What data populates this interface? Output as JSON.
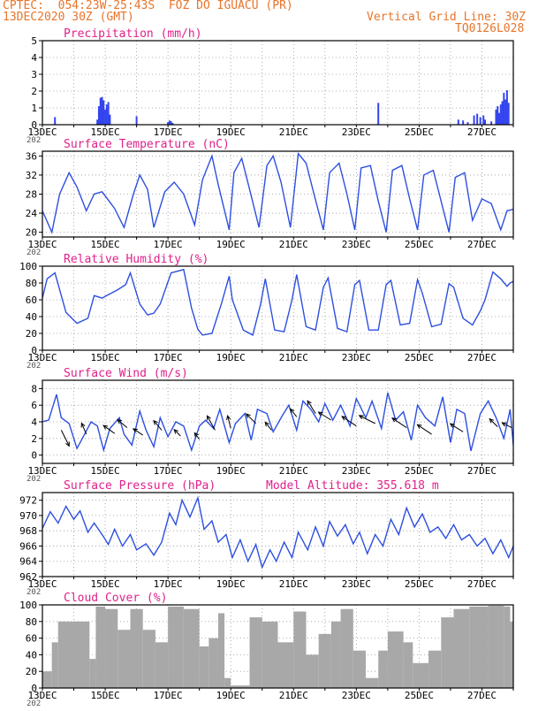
{
  "header": {
    "line1": "CPTEC:  054:23W-25:43S  FOZ DO IGUACU (PR)",
    "line2": "13DEC2020 30Z (GMT)",
    "grid_note": "Vertical Grid Line: 30Z",
    "code": "TQ0126L028"
  },
  "colors": {
    "header": "#e8742a",
    "panel_title": "#e0208a",
    "line": "#2d4fe0",
    "bars": "#3344ee",
    "cloud": "#a8a8a8",
    "axis": "#000000",
    "grid": "#9a9a9a"
  },
  "x_axis": {
    "start": "13DEC",
    "end": "28DEC",
    "tick_labels": [
      "13DEC",
      "15DEC",
      "17DEC",
      "19DEC",
      "21DEC",
      "23DEC",
      "25DEC",
      "27DEC"
    ],
    "year_fragment": "202"
  },
  "chart_data": [
    {
      "id": "precip",
      "type": "bar",
      "title": "Precipitation (mm/h)",
      "ylim": [
        0,
        5
      ],
      "yticks": [
        0,
        1,
        2,
        3,
        4,
        5
      ],
      "grid": true,
      "bars": [
        {
          "day": 13.4,
          "v": 0.45
        },
        {
          "day": 14.75,
          "v": 0.3
        },
        {
          "day": 14.8,
          "v": 1.1
        },
        {
          "day": 14.85,
          "v": 1.6
        },
        {
          "day": 14.9,
          "v": 1.65
        },
        {
          "day": 14.95,
          "v": 1.45
        },
        {
          "day": 15.0,
          "v": 0.9
        },
        {
          "day": 15.05,
          "v": 1.2
        },
        {
          "day": 15.1,
          "v": 1.35
        },
        {
          "day": 15.15,
          "v": 0.6
        },
        {
          "day": 16.0,
          "v": 0.5
        },
        {
          "day": 17.0,
          "v": 0.15
        },
        {
          "day": 17.05,
          "v": 0.25
        },
        {
          "day": 17.1,
          "v": 0.2
        },
        {
          "day": 17.15,
          "v": 0.1
        },
        {
          "day": 23.7,
          "v": 1.3
        },
        {
          "day": 26.25,
          "v": 0.3
        },
        {
          "day": 26.4,
          "v": 0.25
        },
        {
          "day": 26.55,
          "v": 0.15
        },
        {
          "day": 26.75,
          "v": 0.55
        },
        {
          "day": 26.85,
          "v": 0.65
        },
        {
          "day": 26.95,
          "v": 0.45
        },
        {
          "day": 27.05,
          "v": 0.55
        },
        {
          "day": 27.1,
          "v": 0.3
        },
        {
          "day": 27.3,
          "v": 0.2
        },
        {
          "day": 27.45,
          "v": 0.9
        },
        {
          "day": 27.5,
          "v": 1.1
        },
        {
          "day": 27.55,
          "v": 0.7
        },
        {
          "day": 27.6,
          "v": 1.2
        },
        {
          "day": 27.65,
          "v": 1.4
        },
        {
          "day": 27.7,
          "v": 1.9
        },
        {
          "day": 27.75,
          "v": 1.5
        },
        {
          "day": 27.8,
          "v": 2.05
        },
        {
          "day": 27.85,
          "v": 1.3
        }
      ]
    },
    {
      "id": "temp",
      "type": "line",
      "title": "Surface Temperature (nC)",
      "ylim": [
        19,
        37
      ],
      "yticks": [
        20,
        24,
        28,
        32,
        36
      ],
      "grid": true,
      "x": [
        13.0,
        13.3,
        13.55,
        13.85,
        14.1,
        14.4,
        14.65,
        14.9,
        15.3,
        15.6,
        15.9,
        16.1,
        16.35,
        16.55,
        16.9,
        17.2,
        17.5,
        17.85,
        18.1,
        18.4,
        18.6,
        18.95,
        19.1,
        19.35,
        19.6,
        19.9,
        20.15,
        20.35,
        20.6,
        20.9,
        21.15,
        21.4,
        21.65,
        21.95,
        22.15,
        22.45,
        22.7,
        22.95,
        23.15,
        23.45,
        23.7,
        23.95,
        24.15,
        24.45,
        24.7,
        24.95,
        25.15,
        25.45,
        25.7,
        25.95,
        26.15,
        26.45,
        26.7,
        27.0,
        27.3,
        27.6,
        27.8,
        28.0
      ],
      "y": [
        24.5,
        20.0,
        28.0,
        32.5,
        29.5,
        24.5,
        28.0,
        28.5,
        25.0,
        21.0,
        28.0,
        32.0,
        29.0,
        21.0,
        28.5,
        30.5,
        28.0,
        21.5,
        31.0,
        36.0,
        30.0,
        20.5,
        32.5,
        35.5,
        29.0,
        21.0,
        34.0,
        36.0,
        30.5,
        21.0,
        36.5,
        34.5,
        28.0,
        20.5,
        32.5,
        34.5,
        28.0,
        20.5,
        33.5,
        34.0,
        26.5,
        20.0,
        33.0,
        34.0,
        27.0,
        20.5,
        32.0,
        33.0,
        26.5,
        20.0,
        31.5,
        32.5,
        22.5,
        27.0,
        26.0,
        20.5,
        24.5,
        24.8
      ]
    },
    {
      "id": "rh",
      "type": "line",
      "title": "Relative Humidity (%)",
      "ylim": [
        0,
        100
      ],
      "yticks": [
        0,
        20,
        40,
        60,
        80,
        100
      ],
      "grid": true,
      "x": [
        13.0,
        13.15,
        13.4,
        13.55,
        13.75,
        14.1,
        14.45,
        14.65,
        14.9,
        15.1,
        15.4,
        15.65,
        15.8,
        16.1,
        16.35,
        16.55,
        16.75,
        17.1,
        17.5,
        17.75,
        17.95,
        18.1,
        18.4,
        18.7,
        18.95,
        19.05,
        19.4,
        19.7,
        19.95,
        20.1,
        20.4,
        20.7,
        20.95,
        21.1,
        21.4,
        21.7,
        21.95,
        22.1,
        22.4,
        22.7,
        22.95,
        23.1,
        23.4,
        23.7,
        23.95,
        24.1,
        24.4,
        24.7,
        24.95,
        25.1,
        25.4,
        25.7,
        25.95,
        26.1,
        26.4,
        26.7,
        26.95,
        27.1,
        27.35,
        27.6,
        27.8,
        27.9,
        28.0
      ],
      "y": [
        62,
        85,
        92,
        72,
        45,
        32,
        38,
        65,
        62,
        66,
        72,
        78,
        92,
        55,
        42,
        44,
        55,
        92,
        96,
        50,
        25,
        18,
        20,
        55,
        88,
        60,
        24,
        18,
        55,
        85,
        24,
        22,
        60,
        90,
        28,
        24,
        75,
        86,
        26,
        22,
        78,
        83,
        24,
        24,
        78,
        83,
        30,
        32,
        84,
        68,
        28,
        31,
        79,
        75,
        38,
        30,
        47,
        60,
        93,
        85,
        76,
        80,
        82
      ]
    },
    {
      "id": "wind",
      "type": "line",
      "title": "Surface Wind (m/s)",
      "ylim": [
        -1,
        9
      ],
      "yticks": [
        0,
        2,
        4,
        6,
        8
      ],
      "grid": true,
      "x": [
        13.0,
        13.2,
        13.45,
        13.6,
        13.85,
        14.1,
        14.3,
        14.55,
        14.75,
        14.95,
        15.15,
        15.45,
        15.6,
        15.85,
        16.1,
        16.3,
        16.55,
        16.75,
        17.0,
        17.25,
        17.5,
        17.75,
        18.0,
        18.2,
        18.45,
        18.65,
        18.95,
        19.15,
        19.45,
        19.65,
        19.85,
        20.15,
        20.35,
        20.65,
        20.85,
        21.1,
        21.3,
        21.55,
        21.8,
        22.0,
        22.25,
        22.5,
        22.8,
        23.0,
        23.3,
        23.5,
        23.8,
        24.0,
        24.25,
        24.5,
        24.75,
        24.95,
        25.2,
        25.5,
        25.75,
        26.0,
        26.2,
        26.45,
        26.65,
        26.95,
        27.2,
        27.45,
        27.7,
        27.9,
        28.0
      ],
      "y": [
        4.0,
        4.2,
        7.3,
        4.5,
        3.8,
        0.8,
        2.2,
        4.0,
        3.5,
        0.6,
        3.2,
        4.5,
        2.5,
        1.2,
        5.3,
        3.0,
        1.0,
        4.5,
        2.2,
        4.0,
        3.5,
        0.6,
        3.5,
        4.2,
        3.2,
        5.5,
        1.5,
        3.8,
        5.0,
        1.8,
        5.5,
        5.0,
        2.8,
        4.8,
        6.0,
        3.0,
        6.5,
        5.5,
        4.0,
        6.2,
        4.2,
        6.0,
        3.5,
        6.8,
        4.5,
        6.5,
        3.2,
        7.5,
        4.2,
        5.2,
        1.8,
        6.0,
        4.5,
        3.5,
        7.0,
        1.5,
        5.5,
        5.0,
        0.5,
        5.0,
        6.5,
        4.5,
        2.0,
        5.5,
        1.2
      ]
    },
    {
      "id": "wind_vectors",
      "type": "vector",
      "title": "",
      "arrows": [
        {
          "day": 13.6,
          "v": 3.0,
          "dx": 0.5,
          "dy": -1.0
        },
        {
          "day": 14.4,
          "v": 2.5,
          "dx": -0.3,
          "dy": 0.7
        },
        {
          "day": 15.3,
          "v": 2.6,
          "dx": -0.7,
          "dy": 0.5
        },
        {
          "day": 15.7,
          "v": 3.3,
          "dx": -0.6,
          "dy": 0.5
        },
        {
          "day": 16.2,
          "v": 2.4,
          "dx": -0.6,
          "dy": 0.4
        },
        {
          "day": 16.8,
          "v": 3.0,
          "dx": -0.5,
          "dy": 0.6
        },
        {
          "day": 17.4,
          "v": 2.3,
          "dx": -0.4,
          "dy": 0.4
        },
        {
          "day": 18.0,
          "v": 1.9,
          "dx": -0.3,
          "dy": 0.4
        },
        {
          "day": 18.5,
          "v": 3.0,
          "dx": -0.5,
          "dy": 0.9
        },
        {
          "day": 19.0,
          "v": 3.2,
          "dx": -0.2,
          "dy": 0.8
        },
        {
          "day": 19.8,
          "v": 3.8,
          "dx": -0.6,
          "dy": 0.6
        },
        {
          "day": 20.3,
          "v": 3.0,
          "dx": -0.4,
          "dy": 0.5
        },
        {
          "day": 21.1,
          "v": 4.6,
          "dx": -0.4,
          "dy": 0.5
        },
        {
          "day": 21.7,
          "v": 5.0,
          "dx": -0.5,
          "dy": 0.8
        },
        {
          "day": 22.2,
          "v": 4.2,
          "dx": -0.8,
          "dy": 0.5
        },
        {
          "day": 23.0,
          "v": 3.5,
          "dx": -0.9,
          "dy": 0.6
        },
        {
          "day": 23.6,
          "v": 3.8,
          "dx": -1.0,
          "dy": 0.5
        },
        {
          "day": 24.6,
          "v": 3.3,
          "dx": -0.9,
          "dy": 0.6
        },
        {
          "day": 25.4,
          "v": 2.5,
          "dx": -0.9,
          "dy": 0.6
        },
        {
          "day": 26.4,
          "v": 2.8,
          "dx": -0.8,
          "dy": 0.5
        },
        {
          "day": 27.5,
          "v": 3.4,
          "dx": -0.5,
          "dy": 0.5
        },
        {
          "day": 27.95,
          "v": 3.3,
          "dx": -0.6,
          "dy": 0.3
        }
      ]
    },
    {
      "id": "pressure",
      "type": "line",
      "title": "Surface Pressure (hPa)",
      "subtitle": "Model Altitude: 355.618  m",
      "ylim": [
        962,
        973
      ],
      "yticks": [
        962,
        964,
        966,
        968,
        970,
        972
      ],
      "grid": true,
      "x": [
        13.0,
        13.25,
        13.5,
        13.75,
        14.0,
        14.2,
        14.45,
        14.65,
        14.95,
        15.1,
        15.3,
        15.55,
        15.8,
        16.0,
        16.3,
        16.55,
        16.8,
        17.05,
        17.25,
        17.45,
        17.7,
        17.95,
        18.15,
        18.4,
        18.6,
        18.85,
        19.05,
        19.3,
        19.55,
        19.8,
        20.0,
        20.25,
        20.45,
        20.7,
        20.95,
        21.15,
        21.45,
        21.7,
        21.95,
        22.15,
        22.4,
        22.65,
        22.9,
        23.1,
        23.35,
        23.6,
        23.85,
        24.1,
        24.35,
        24.6,
        24.85,
        25.1,
        25.35,
        25.6,
        25.85,
        26.1,
        26.35,
        26.6,
        26.85,
        27.1,
        27.35,
        27.6,
        27.85,
        28.0
      ],
      "y": [
        968.3,
        970.5,
        969.0,
        971.2,
        969.5,
        970.6,
        967.8,
        969.0,
        967.2,
        966.2,
        968.2,
        966.0,
        967.5,
        965.5,
        966.3,
        964.8,
        966.5,
        970.3,
        968.8,
        972.0,
        969.8,
        972.3,
        968.2,
        969.3,
        966.5,
        967.5,
        964.5,
        966.8,
        964.0,
        966.2,
        963.2,
        965.5,
        964.0,
        966.5,
        964.5,
        967.8,
        965.5,
        968.5,
        966.0,
        969.2,
        967.3,
        968.8,
        966.3,
        967.8,
        965.0,
        967.5,
        966.0,
        969.5,
        967.5,
        971.0,
        968.5,
        970.2,
        967.8,
        968.5,
        967.0,
        968.8,
        966.8,
        967.5,
        966.0,
        967.0,
        965.0,
        966.8,
        964.5,
        966.0
      ]
    },
    {
      "id": "cloud",
      "type": "bar",
      "title": "Cloud Cover (%)",
      "ylim": [
        0,
        100
      ],
      "yticks": [
        0,
        20,
        40,
        60,
        80,
        100
      ],
      "grid": true,
      "bars": [
        {
          "d1": 13.0,
          "d2": 13.3,
          "v": 20
        },
        {
          "d1": 13.3,
          "d2": 13.5,
          "v": 55
        },
        {
          "d1": 13.5,
          "d2": 14.0,
          "v": 80
        },
        {
          "d1": 14.0,
          "d2": 14.5,
          "v": 80
        },
        {
          "d1": 14.5,
          "d2": 14.7,
          "v": 35
        },
        {
          "d1": 14.7,
          "d2": 15.0,
          "v": 98
        },
        {
          "d1": 15.0,
          "d2": 15.4,
          "v": 95
        },
        {
          "d1": 15.4,
          "d2": 15.8,
          "v": 70
        },
        {
          "d1": 15.8,
          "d2": 16.2,
          "v": 95
        },
        {
          "d1": 16.2,
          "d2": 16.6,
          "v": 70
        },
        {
          "d1": 16.6,
          "d2": 17.0,
          "v": 55
        },
        {
          "d1": 17.0,
          "d2": 17.5,
          "v": 98
        },
        {
          "d1": 17.5,
          "d2": 18.0,
          "v": 95
        },
        {
          "d1": 18.0,
          "d2": 18.3,
          "v": 50
        },
        {
          "d1": 18.3,
          "d2": 18.6,
          "v": 60
        },
        {
          "d1": 18.6,
          "d2": 18.8,
          "v": 90
        },
        {
          "d1": 18.8,
          "d2": 19.0,
          "v": 12
        },
        {
          "d1": 19.0,
          "d2": 19.6,
          "v": 3
        },
        {
          "d1": 19.6,
          "d2": 20.0,
          "v": 85
        },
        {
          "d1": 20.0,
          "d2": 20.5,
          "v": 80
        },
        {
          "d1": 20.5,
          "d2": 21.0,
          "v": 55
        },
        {
          "d1": 21.0,
          "d2": 21.4,
          "v": 92
        },
        {
          "d1": 21.4,
          "d2": 21.8,
          "v": 40
        },
        {
          "d1": 21.8,
          "d2": 22.2,
          "v": 65
        },
        {
          "d1": 22.2,
          "d2": 22.5,
          "v": 80
        },
        {
          "d1": 22.5,
          "d2": 22.9,
          "v": 95
        },
        {
          "d1": 22.9,
          "d2": 23.3,
          "v": 45
        },
        {
          "d1": 23.3,
          "d2": 23.7,
          "v": 12
        },
        {
          "d1": 23.7,
          "d2": 24.0,
          "v": 45
        },
        {
          "d1": 24.0,
          "d2": 24.5,
          "v": 68
        },
        {
          "d1": 24.5,
          "d2": 24.8,
          "v": 55
        },
        {
          "d1": 24.8,
          "d2": 25.3,
          "v": 30
        },
        {
          "d1": 25.3,
          "d2": 25.7,
          "v": 45
        },
        {
          "d1": 25.7,
          "d2": 26.1,
          "v": 85
        },
        {
          "d1": 26.1,
          "d2": 26.6,
          "v": 95
        },
        {
          "d1": 26.6,
          "d2": 27.2,
          "v": 98
        },
        {
          "d1": 27.2,
          "d2": 27.7,
          "v": 99
        },
        {
          "d1": 27.7,
          "d2": 27.9,
          "v": 98
        },
        {
          "d1": 27.9,
          "d2": 28.0,
          "v": 80
        }
      ]
    }
  ]
}
